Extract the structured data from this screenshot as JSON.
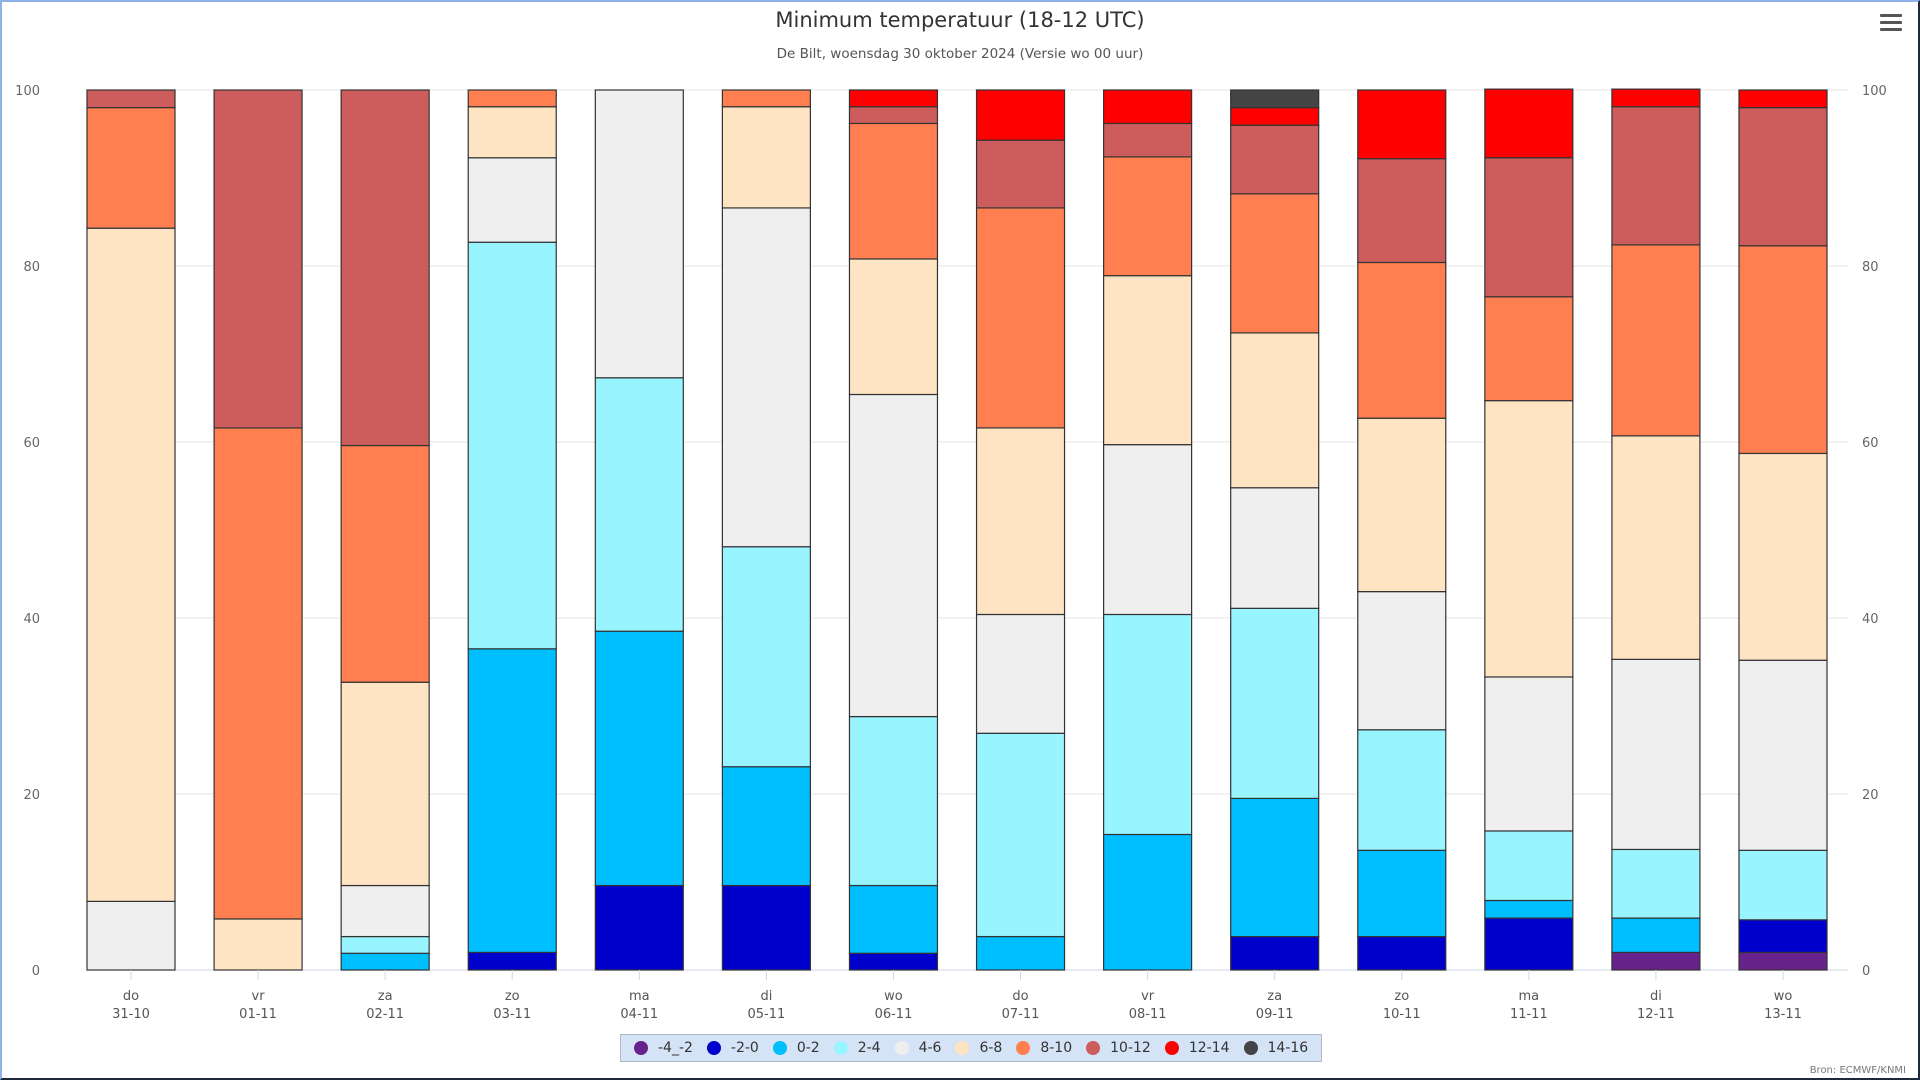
{
  "header": {
    "title": "Minimum temperatuur (18-12 UTC)",
    "subtitle": "De Bilt, woensdag 30 oktober 2024 (Versie wo 00 uur)",
    "menu_icon": "hamburger-menu-icon"
  },
  "source": "Bron: ECMWF/KNMI",
  "chart_data": {
    "type": "bar",
    "stacked": true,
    "title": "Minimum temperatuur (18-12 UTC)",
    "subtitle": "De Bilt, woensdag 30 oktober 2024 (Versie wo 00 uur)",
    "xlabel": "",
    "ylabel": "",
    "ylim": [
      0,
      100
    ],
    "yticks": [
      0,
      20,
      40,
      60,
      80,
      100
    ],
    "grid": true,
    "legend_position": "bottom-center",
    "categories": [
      {
        "day": "do",
        "date": "31-10"
      },
      {
        "day": "vr",
        "date": "01-11"
      },
      {
        "day": "za",
        "date": "02-11"
      },
      {
        "day": "zo",
        "date": "03-11"
      },
      {
        "day": "ma",
        "date": "04-11"
      },
      {
        "day": "di",
        "date": "05-11"
      },
      {
        "day": "wo",
        "date": "06-11"
      },
      {
        "day": "do",
        "date": "07-11"
      },
      {
        "day": "vr",
        "date": "08-11"
      },
      {
        "day": "za",
        "date": "09-11"
      },
      {
        "day": "zo",
        "date": "10-11"
      },
      {
        "day": "ma",
        "date": "11-11"
      },
      {
        "day": "di",
        "date": "12-11"
      },
      {
        "day": "wo",
        "date": "13-11"
      }
    ],
    "series": [
      {
        "name": "-4_-2",
        "color": "#68228b",
        "values": [
          0,
          0,
          0,
          0,
          0,
          0,
          0,
          0,
          0,
          0,
          0,
          0,
          2.0,
          2.0
        ]
      },
      {
        "name": "-2-0",
        "color": "#0000cd",
        "values": [
          0,
          0,
          0,
          2.0,
          9.6,
          9.6,
          1.9,
          0,
          0,
          3.8,
          3.8,
          5.9,
          0,
          3.7
        ]
      },
      {
        "name": "0-2",
        "color": "#00bfff",
        "values": [
          0,
          0,
          1.9,
          34.5,
          28.9,
          13.5,
          7.7,
          3.8,
          15.4,
          15.7,
          9.8,
          2.0,
          3.9,
          0
        ]
      },
      {
        "name": "2-4",
        "color": "#98f5ff",
        "values": [
          0,
          0,
          1.9,
          46.2,
          28.8,
          25.0,
          19.2,
          23.1,
          25.0,
          21.6,
          13.7,
          7.9,
          7.8,
          7.9
        ]
      },
      {
        "name": "4-6",
        "color": "#efefef",
        "values": [
          7.8,
          0,
          5.8,
          9.6,
          32.7,
          38.5,
          36.6,
          13.5,
          19.3,
          13.7,
          15.7,
          17.5,
          21.6,
          21.6
        ]
      },
      {
        "name": "6-8",
        "color": "#ffe4c4",
        "values": [
          76.5,
          5.8,
          23.1,
          5.8,
          0,
          11.5,
          15.4,
          21.2,
          19.2,
          17.6,
          19.7,
          31.4,
          25.4,
          23.5
        ]
      },
      {
        "name": "8-10",
        "color": "#ff7f50",
        "values": [
          13.7,
          55.8,
          26.9,
          1.9,
          0,
          1.9,
          15.4,
          25.0,
          13.5,
          15.8,
          17.7,
          11.8,
          21.7,
          23.6
        ]
      },
      {
        "name": "10-12",
        "color": "#cd5c5c",
        "values": [
          2.0,
          38.4,
          40.4,
          0,
          0,
          0,
          1.9,
          7.7,
          3.8,
          7.8,
          11.8,
          15.8,
          15.7,
          15.7
        ]
      },
      {
        "name": "12-14",
        "color": "#ff0000",
        "values": [
          0,
          0,
          0,
          0,
          0,
          0,
          1.9,
          5.7,
          3.8,
          2.0,
          7.8,
          7.8,
          2.0,
          2.0
        ]
      },
      {
        "name": "14-16",
        "color": "#444444",
        "values": [
          0,
          0,
          0,
          0,
          0,
          0,
          0,
          0,
          0,
          2.0,
          0,
          0,
          0,
          0
        ]
      }
    ]
  }
}
